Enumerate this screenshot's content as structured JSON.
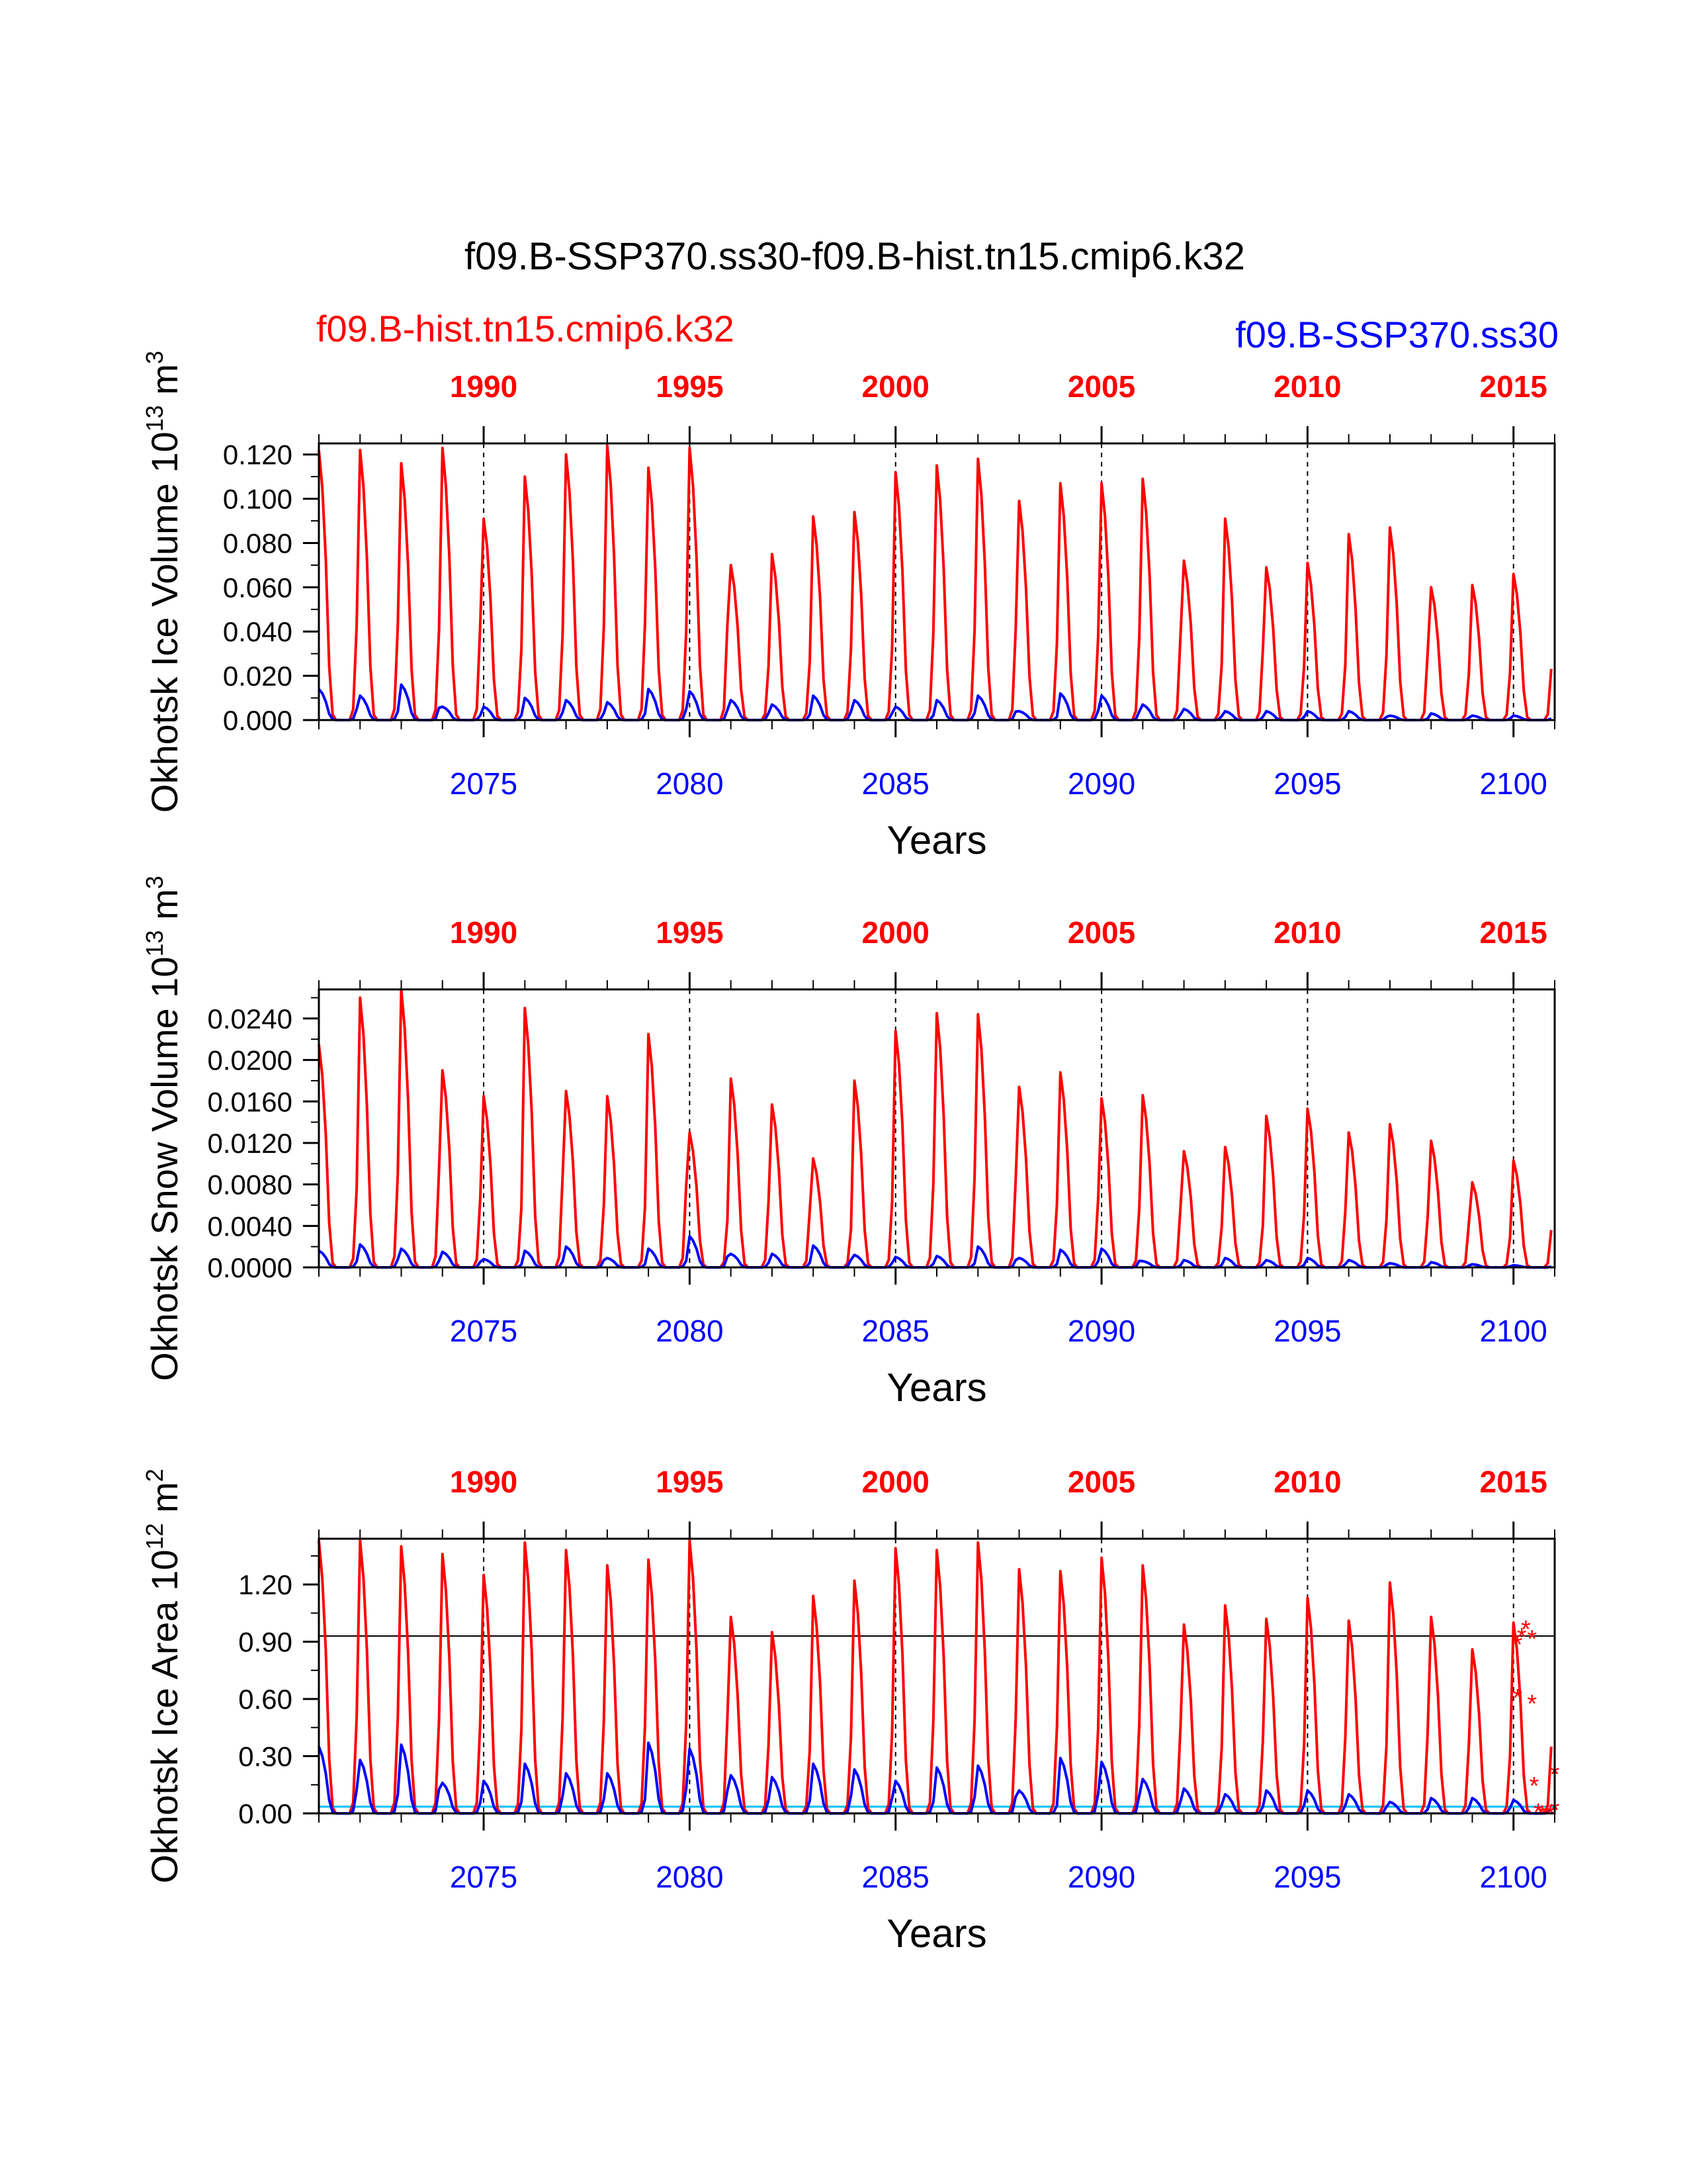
{
  "title": "f09.B-SSP370.ss30-f09.B-hist.tn15.cmip6.k32",
  "legend": {
    "hist": "f09.B-hist.tn15.cmip6.k32",
    "ssp": "f09.B-SSP370.ss30"
  },
  "colors": {
    "hist": "#ff0000",
    "ssp": "#0000ff",
    "ssp_light": "#00bfff",
    "axes": "#000000",
    "top_ticks": "#ff0000",
    "bottom_ticks": "#0000ff"
  },
  "chart_data": [
    {
      "type": "line",
      "ylabel": "Okhotsk Ice Volume 10",
      "ylabel_exp": "13",
      "ylabel_unit": " m",
      "ylabel_unit_exp": "3",
      "xlabel": "Years",
      "ylim": [
        0,
        0.125
      ],
      "yticks": [
        "0.000",
        "0.020",
        "0.040",
        "0.060",
        "0.080",
        "0.100",
        "0.120"
      ],
      "ytick_values": [
        0,
        0.02,
        0.04,
        0.06,
        0.08,
        0.1,
        0.12
      ],
      "xlim": [
        2071,
        2101
      ],
      "bottom_axis_ticks": [
        "2075",
        "2080",
        "2085",
        "2090",
        "2095",
        "2100"
      ],
      "top_axis_ticks": [
        "1990",
        "1995",
        "2000",
        "2005",
        "2010",
        "2015"
      ],
      "year_offset": 85,
      "series": [
        {
          "name": "f09.B-hist.tn15.cmip6.k32",
          "color": "#ff0000",
          "annual_peaks": [
            0.122,
            0.122,
            0.116,
            0.123,
            0.091,
            0.11,
            0.12,
            0.124,
            0.114,
            0.123,
            0.07,
            0.075,
            0.092,
            0.094,
            0.112,
            0.115,
            0.118,
            0.099,
            0.107,
            0.107,
            0.109,
            0.072,
            0.091,
            0.069,
            0.071,
            0.084,
            0.087,
            0.06,
            0.061,
            0.066
          ]
        },
        {
          "name": "f09.B-SSP370.ss30",
          "color": "#0000ff",
          "annual_peaks": [
            0.014,
            0.011,
            0.016,
            0.006,
            0.006,
            0.01,
            0.009,
            0.008,
            0.014,
            0.013,
            0.009,
            0.007,
            0.011,
            0.009,
            0.006,
            0.009,
            0.011,
            0.004,
            0.012,
            0.011,
            0.007,
            0.005,
            0.004,
            0.004,
            0.004,
            0.004,
            0.002,
            0.003,
            0.002,
            0.002
          ]
        }
      ]
    },
    {
      "type": "line",
      "ylabel": "Okhotsk Snow Volume 10",
      "ylabel_exp": "13",
      "ylabel_unit": " m",
      "ylabel_unit_exp": "3",
      "xlabel": "Years",
      "ylim": [
        0,
        0.0268
      ],
      "yticks": [
        "0.0000",
        "0.0040",
        "0.0080",
        "0.0120",
        "0.0160",
        "0.0200",
        "0.0240"
      ],
      "ytick_values": [
        0,
        0.004,
        0.008,
        0.012,
        0.016,
        0.02,
        0.024
      ],
      "xlim": [
        2071,
        2101
      ],
      "bottom_axis_ticks": [
        "2075",
        "2080",
        "2085",
        "2090",
        "2095",
        "2100"
      ],
      "top_axis_ticks": [
        "1990",
        "1995",
        "2000",
        "2005",
        "2010",
        "2015"
      ],
      "year_offset": 85,
      "series": [
        {
          "name": "f09.B-hist.tn15.cmip6.k32",
          "color": "#ff0000",
          "annual_peaks": [
            0.0215,
            0.026,
            0.0268,
            0.019,
            0.0165,
            0.025,
            0.017,
            0.0165,
            0.0225,
            0.013,
            0.0182,
            0.0157,
            0.0105,
            0.018,
            0.0228,
            0.0245,
            0.0244,
            0.0174,
            0.0188,
            0.0163,
            0.0166,
            0.0112,
            0.0116,
            0.0146,
            0.0153,
            0.013,
            0.0138,
            0.0122,
            0.0082,
            0.0103
          ]
        },
        {
          "name": "f09.B-SSP370.ss30",
          "color": "#0000ff",
          "annual_peaks": [
            0.0016,
            0.0022,
            0.0018,
            0.0015,
            0.0008,
            0.0016,
            0.002,
            0.0009,
            0.0018,
            0.003,
            0.0013,
            0.0013,
            0.0021,
            0.0012,
            0.001,
            0.0011,
            0.002,
            0.0009,
            0.0017,
            0.0018,
            0.0006,
            0.0007,
            0.0009,
            0.0007,
            0.0009,
            0.0007,
            0.0004,
            0.0005,
            0.0003,
            0.0002
          ]
        }
      ]
    },
    {
      "type": "line",
      "ylabel": "Okhotsk Ice Area 10",
      "ylabel_exp": "12",
      "ylabel_unit": " m",
      "ylabel_unit_exp": "2",
      "xlabel": "Years",
      "ylim": [
        0,
        1.44
      ],
      "yticks": [
        "0.00",
        "0.30",
        "0.60",
        "0.90",
        "1.20"
      ],
      "ytick_values": [
        0,
        0.3,
        0.6,
        0.9,
        1.2
      ],
      "xlim": [
        2071,
        2101
      ],
      "bottom_axis_ticks": [
        "2075",
        "2080",
        "2085",
        "2090",
        "2095",
        "2100"
      ],
      "top_axis_ticks": [
        "1990",
        "1995",
        "2000",
        "2005",
        "2010",
        "2015"
      ],
      "year_offset": 85,
      "reference_line": 0.93,
      "series": [
        {
          "name": "f09.B-hist.tn15.cmip6.k32",
          "color": "#ff0000",
          "annual_peaks": [
            1.43,
            1.43,
            1.4,
            1.36,
            1.25,
            1.42,
            1.38,
            1.3,
            1.33,
            1.43,
            1.03,
            0.95,
            1.14,
            1.22,
            1.39,
            1.38,
            1.42,
            1.28,
            1.27,
            1.34,
            1.3,
            0.99,
            1.09,
            1.02,
            1.13,
            1.01,
            1.21,
            1.03,
            0.86,
            1.0
          ]
        },
        {
          "name": "f09.B-SSP370.ss30",
          "color": "#0000ff",
          "annual_peaks": [
            0.35,
            0.28,
            0.36,
            0.16,
            0.17,
            0.26,
            0.21,
            0.21,
            0.37,
            0.34,
            0.2,
            0.19,
            0.26,
            0.23,
            0.17,
            0.24,
            0.25,
            0.12,
            0.29,
            0.27,
            0.18,
            0.13,
            0.1,
            0.12,
            0.12,
            0.1,
            0.06,
            0.08,
            0.08,
            0.07
          ]
        }
      ],
      "markers": {
        "color": "#ff0000",
        "symbol": "*",
        "points": [
          {
            "x": 2100.1,
            "y": 0.89
          },
          {
            "x": 2100.2,
            "y": 0.93
          },
          {
            "x": 2100.3,
            "y": 0.97
          },
          {
            "x": 2100.45,
            "y": 0.92
          },
          {
            "x": 2100.1,
            "y": 0.61
          },
          {
            "x": 2100.45,
            "y": 0.58
          },
          {
            "x": 2100.5,
            "y": 0.15
          },
          {
            "x": 2100.6,
            "y": 0.01
          },
          {
            "x": 2100.7,
            "y": 0.0
          },
          {
            "x": 2100.8,
            "y": 0.0
          },
          {
            "x": 2100.9,
            "y": 0.0
          },
          {
            "x": 2101.0,
            "y": 0.02
          },
          {
            "x": 2101.0,
            "y": 0.21
          }
        ]
      }
    }
  ]
}
